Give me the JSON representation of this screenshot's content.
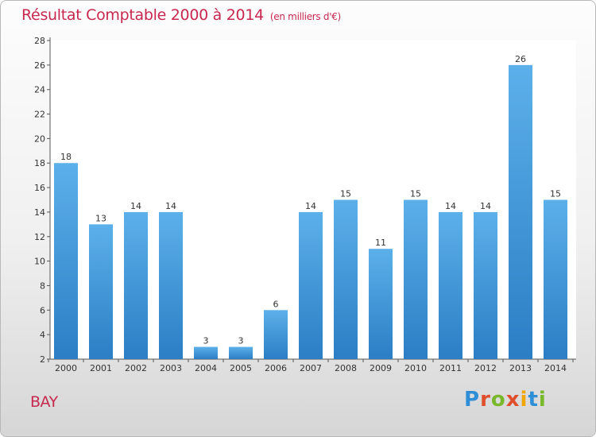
{
  "header": {
    "title": "Résultat Comptable 2000 à 2014",
    "unit": "(en milliers d'€)"
  },
  "commune": "BAY",
  "logo": {
    "text": "Proxiti",
    "letters": [
      "P",
      "r",
      "o",
      "x",
      "i",
      "t",
      "i"
    ],
    "colors": [
      "#2f8fd6",
      "#e04f2c",
      "#78b82a",
      "#e04f2c",
      "#f0a500",
      "#2f8fd6",
      "#78b82a"
    ]
  },
  "colors": {
    "title": "#c8284f",
    "bar_top": "#5cb0ea",
    "bar_bottom": "#2b7ec4",
    "axis": "#555555",
    "grid_bg": "#ffffff"
  },
  "chart_data": {
    "type": "bar",
    "title": "Résultat Comptable 2000 à 2014",
    "xlabel": "",
    "ylabel": "",
    "categories": [
      "2000",
      "2001",
      "2002",
      "2003",
      "2004",
      "2005",
      "2006",
      "2007",
      "2008",
      "2009",
      "2010",
      "2011",
      "2012",
      "2013",
      "2014"
    ],
    "values": [
      18,
      13,
      14,
      14,
      3,
      3,
      6,
      14,
      15,
      11,
      15,
      14,
      14,
      26,
      15
    ],
    "ylim": [
      2,
      28
    ],
    "yticks": [
      2,
      4,
      6,
      8,
      10,
      12,
      14,
      16,
      18,
      20,
      22,
      24,
      26,
      28
    ],
    "grid": false,
    "legend": "none"
  }
}
